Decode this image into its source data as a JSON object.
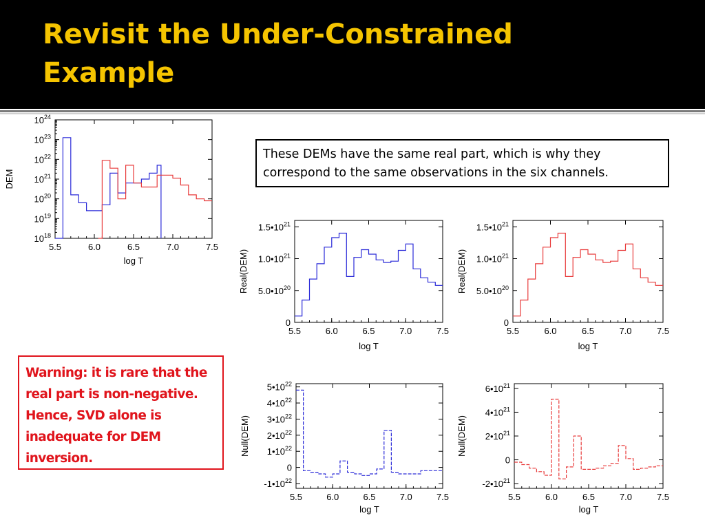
{
  "slide": {
    "title_lines": [
      "Revisit the Under-Constrained",
      "Example"
    ],
    "note": "These DEMs have the same real part, which is why they correspond to the same observations in the six channels.",
    "warning_lines": [
      "Warning: it is rare that the",
      "real part is non-negative.",
      "Hence, SVD alone is",
      "inadequate for DEM",
      "inversion."
    ]
  },
  "colors": {
    "title": "#f5c400",
    "background_header": "#000000",
    "blue_series": "#2a2ad8",
    "red_series": "#e83a3a",
    "warning": "#e0141c"
  },
  "chart_data": [
    {
      "id": "dem",
      "type": "line",
      "xlabel": "log T",
      "ylabel": "DEM",
      "xlim": [
        5.5,
        7.5
      ],
      "ylim": [
        18,
        24
      ],
      "y_scale": "log10",
      "x_ticks": [
        "5.5",
        "6.0",
        "6.5",
        "7.0",
        "7.5"
      ],
      "y_ticks": [
        {
          "v": 18,
          "base": "10",
          "sup": "18"
        },
        {
          "v": 19,
          "base": "10",
          "sup": "19"
        },
        {
          "v": 20,
          "base": "10",
          "sup": "20"
        },
        {
          "v": 21,
          "base": "10",
          "sup": "21"
        },
        {
          "v": 22,
          "base": "10",
          "sup": "22"
        },
        {
          "v": 23,
          "base": "10",
          "sup": "23"
        },
        {
          "v": 24,
          "base": "10",
          "sup": "24"
        }
      ],
      "series": [
        {
          "color": "#2a2ad8",
          "x": [
            5.5,
            5.6,
            5.7,
            5.8,
            5.9,
            6.0,
            6.1,
            6.2,
            6.3,
            6.4,
            6.5,
            6.6,
            6.7,
            6.8,
            6.85
          ],
          "y": [
            18,
            23.1,
            20.2,
            19.8,
            19.4,
            19.4,
            19.7,
            21.3,
            20.3,
            20.8,
            20.8,
            21.0,
            21.3,
            21.7,
            18
          ]
        },
        {
          "color": "#e83a3a",
          "x": [
            6.05,
            6.1,
            6.2,
            6.3,
            6.4,
            6.5,
            6.6,
            6.7,
            6.8,
            6.9,
            7.0,
            7.1,
            7.2,
            7.3,
            7.4,
            7.5
          ],
          "y": [
            18,
            21.95,
            21.55,
            20.0,
            21.7,
            20.8,
            20.6,
            20.6,
            21.2,
            21.2,
            21.05,
            20.7,
            20.2,
            20.0,
            19.9,
            19.9
          ]
        }
      ]
    },
    {
      "id": "real-blue",
      "type": "line",
      "xlabel": "log T",
      "ylabel": "Real(DEM)",
      "xlim": [
        5.5,
        7.5
      ],
      "ylim": [
        0,
        1.6e+21
      ],
      "x_ticks": [
        "5.5",
        "6.0",
        "6.5",
        "7.0",
        "7.5"
      ],
      "y_ticks": [
        {
          "v": 0,
          "base": "0",
          "sup": ""
        },
        {
          "v": 5e+20,
          "base": "5.0•10",
          "sup": "20"
        },
        {
          "v": 1e+21,
          "base": "1.0•10",
          "sup": "21"
        },
        {
          "v": 1.5e+21,
          "base": "1.5•10",
          "sup": "21"
        }
      ],
      "series": [
        {
          "color": "#2a2ad8",
          "x": [
            5.5,
            5.55,
            5.6,
            5.7,
            5.8,
            5.9,
            6.0,
            6.1,
            6.2,
            6.3,
            6.4,
            6.5,
            6.6,
            6.7,
            6.8,
            6.9,
            7.0,
            7.1,
            7.2,
            7.3,
            7.4,
            7.5
          ],
          "y": [
            1e+20,
            1e+20,
            3.5e+20,
            6.8e+20,
            9.2e+20,
            1.18e+21,
            1.33e+21,
            1.4e+21,
            7.2e+20,
            1.02e+21,
            1.14e+21,
            1.07e+21,
            9.8e+20,
            9.4e+20,
            9.6e+20,
            1.13e+21,
            1.23e+21,
            8.4e+20,
            7e+20,
            6.3e+20,
            5.8e+20,
            5.8e+20
          ]
        }
      ]
    },
    {
      "id": "real-red",
      "type": "line",
      "xlabel": "log T",
      "ylabel": "Real(DEM)",
      "xlim": [
        5.5,
        7.5
      ],
      "ylim": [
        0,
        1.6e+21
      ],
      "x_ticks": [
        "5.5",
        "6.0",
        "6.5",
        "7.0",
        "7.5"
      ],
      "y_ticks": [
        {
          "v": 0,
          "base": "0",
          "sup": ""
        },
        {
          "v": 5e+20,
          "base": "5.0•10",
          "sup": "20"
        },
        {
          "v": 1e+21,
          "base": "1.0•10",
          "sup": "21"
        },
        {
          "v": 1.5e+21,
          "base": "1.5•10",
          "sup": "21"
        }
      ],
      "series": [
        {
          "color": "#e83a3a",
          "x": [
            5.5,
            5.55,
            5.6,
            5.7,
            5.8,
            5.9,
            6.0,
            6.1,
            6.2,
            6.3,
            6.4,
            6.5,
            6.6,
            6.7,
            6.8,
            6.9,
            7.0,
            7.1,
            7.2,
            7.3,
            7.4,
            7.5
          ],
          "y": [
            1e+20,
            1e+20,
            3.5e+20,
            6.8e+20,
            9.2e+20,
            1.18e+21,
            1.33e+21,
            1.4e+21,
            7.2e+20,
            1.02e+21,
            1.14e+21,
            1.07e+21,
            9.8e+20,
            9.4e+20,
            9.6e+20,
            1.13e+21,
            1.23e+21,
            8.4e+20,
            7e+20,
            6.3e+20,
            5.8e+20,
            5.8e+20
          ]
        }
      ]
    },
    {
      "id": "null-blue",
      "type": "line",
      "xlabel": "log T",
      "ylabel": "Null(DEM)",
      "xlim": [
        5.5,
        7.5
      ],
      "ylim": [
        -1.3e+22,
        5.2e+22
      ],
      "dashed": true,
      "x_ticks": [
        "5.5",
        "6.0",
        "6.5",
        "7.0",
        "7.5"
      ],
      "y_ticks": [
        {
          "v": -1e+22,
          "base": "-1•10",
          "sup": "22"
        },
        {
          "v": 0,
          "base": "0",
          "sup": ""
        },
        {
          "v": 1e+22,
          "base": "1•10",
          "sup": "22"
        },
        {
          "v": 2e+22,
          "base": "2•10",
          "sup": "22"
        },
        {
          "v": 3e+22,
          "base": "3•10",
          "sup": "22"
        },
        {
          "v": 4e+22,
          "base": "4•10",
          "sup": "22"
        },
        {
          "v": 5e+22,
          "base": "5•10",
          "sup": "22"
        }
      ],
      "series": [
        {
          "color": "#2a2ad8",
          "x": [
            5.5,
            5.6,
            5.7,
            5.8,
            5.9,
            6.0,
            6.1,
            6.2,
            6.3,
            6.4,
            6.5,
            6.6,
            6.7,
            6.8,
            6.9,
            7.0,
            7.1,
            7.2,
            7.3,
            7.4,
            7.5
          ],
          "y": [
            4.8e+22,
            -2e+21,
            -3e+21,
            -4e+21,
            -6e+21,
            -4e+21,
            4e+21,
            -3e+21,
            -4e+21,
            -5e+21,
            -4e+21,
            -1e+21,
            2.3e+22,
            -3e+21,
            -4e+21,
            -4e+21,
            -4e+21,
            -2e+21,
            -2e+21,
            -2e+21,
            -2e+21
          ]
        }
      ]
    },
    {
      "id": "null-red",
      "type": "line",
      "xlabel": "log T",
      "ylabel": "Null(DEM)",
      "xlim": [
        5.5,
        7.5
      ],
      "ylim": [
        -2.4e+21,
        6.4e+21
      ],
      "dashed": true,
      "x_ticks": [
        "5.5",
        "6.0",
        "6.5",
        "7.0",
        "7.5"
      ],
      "y_ticks": [
        {
          "v": -2e+21,
          "base": "-2•10",
          "sup": "21"
        },
        {
          "v": 0,
          "base": "0",
          "sup": ""
        },
        {
          "v": 2e+21,
          "base": "2•10",
          "sup": "21"
        },
        {
          "v": 4e+21,
          "base": "4•10",
          "sup": "21"
        },
        {
          "v": 6e+21,
          "base": "6•10",
          "sup": "21"
        }
      ],
      "series": [
        {
          "color": "#e83a3a",
          "x": [
            5.5,
            5.6,
            5.7,
            5.8,
            5.9,
            6.0,
            6.1,
            6.2,
            6.3,
            6.4,
            6.5,
            6.6,
            6.7,
            6.8,
            6.9,
            7.0,
            7.1,
            7.2,
            7.3,
            7.4,
            7.5
          ],
          "y": [
            -2e+20,
            -4e+20,
            -7e+20,
            -1e+21,
            -1.3e+21,
            5.1e+21,
            -1.6e+21,
            -6e+20,
            2e+21,
            -8e+20,
            -8e+20,
            -7e+20,
            -5e+20,
            -3e+20,
            1.2e+21,
            1e+20,
            -8e+20,
            -7e+20,
            -6e+20,
            -5e+20,
            -5e+20
          ]
        }
      ]
    }
  ]
}
